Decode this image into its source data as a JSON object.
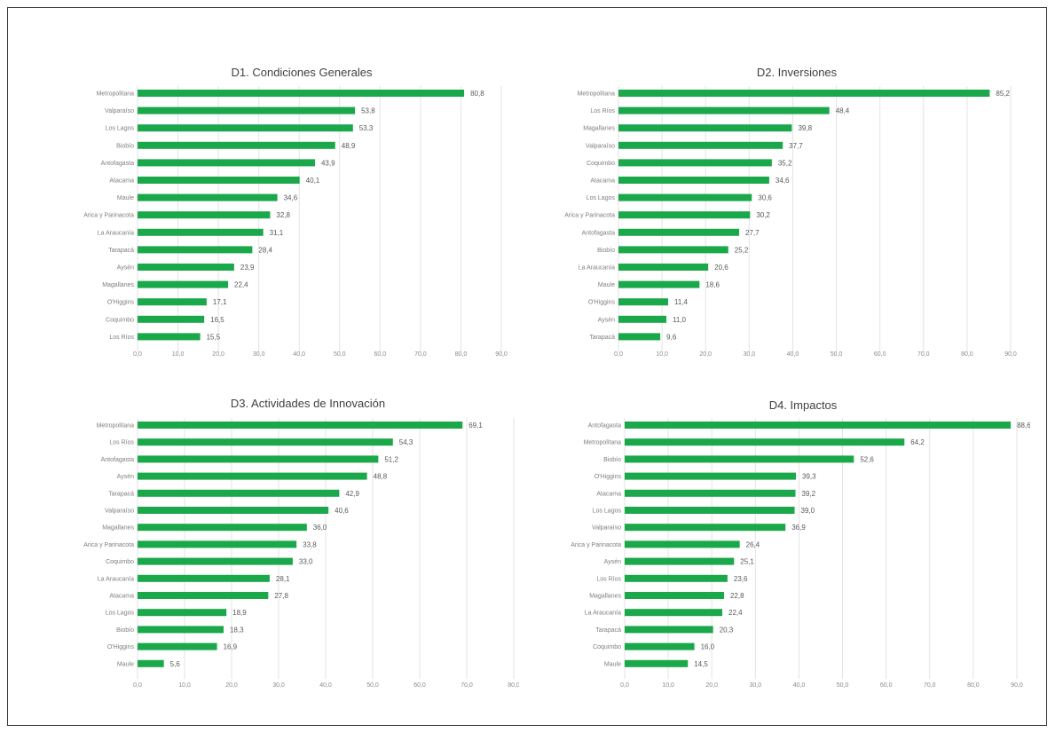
{
  "chart_data": [
    {
      "type": "bar",
      "orientation": "horizontal",
      "title": "D1. Condiciones Generales",
      "categories": [
        "Metropolitana",
        "Valparaíso",
        "Los Lagos",
        "Biobío",
        "Antofagasta",
        "Atacama",
        "Maule",
        "Arica y Parinacota",
        "La Araucanía",
        "Tarapacá",
        "Aysén",
        "Magallanes",
        "O'Higgins",
        "Coquimbo",
        "Los Ríos"
      ],
      "values": [
        80.8,
        53.8,
        53.3,
        48.9,
        43.9,
        40.1,
        34.6,
        32.8,
        31.1,
        28.4,
        23.9,
        22.4,
        17.1,
        16.5,
        15.5
      ],
      "value_labels": [
        "80,8",
        "53,8",
        "53,3",
        "48,9",
        "43,9",
        "40,1",
        "34,6",
        "32,8",
        "31,1",
        "28,4",
        "23,9",
        "22,4",
        "17,1",
        "16,5",
        "15,5"
      ],
      "tick_labels": [
        "0,0",
        "10,0",
        "20,0",
        "30,0",
        "40,0",
        "50,0",
        "60,0",
        "70,0",
        "80,0",
        "90,0"
      ],
      "xlim": [
        0,
        90
      ],
      "grid": true,
      "bar_color": "#1aa84a"
    },
    {
      "type": "bar",
      "orientation": "horizontal",
      "title": "D2. Inversiones",
      "categories": [
        "Metropolitana",
        "Los Ríos",
        "Magallanes",
        "Valparaíso",
        "Coquimbo",
        "Atacama",
        "Los Lagos",
        "Arica y Parinacota",
        "Antofagasta",
        "Biobío",
        "La Araucanía",
        "Maule",
        "O'Higgins",
        "Aysén",
        "Tarapacá"
      ],
      "values": [
        85.2,
        48.4,
        39.8,
        37.7,
        35.2,
        34.6,
        30.6,
        30.2,
        27.7,
        25.2,
        20.6,
        18.6,
        11.4,
        11.0,
        9.6
      ],
      "value_labels": [
        "85,2",
        "48,4",
        "39,8",
        "37,7",
        "35,2",
        "34,6",
        "30,6",
        "30,2",
        "27,7",
        "25,2",
        "20,6",
        "18,6",
        "11,4",
        "11,0",
        "9,6"
      ],
      "tick_labels": [
        "0,0",
        "10,0",
        "20,0",
        "30,0",
        "40,0",
        "50,0",
        "60,0",
        "70,0",
        "80,0",
        "90,0"
      ],
      "xlim": [
        0,
        90
      ],
      "grid": true,
      "bar_color": "#1aa84a"
    },
    {
      "type": "bar",
      "orientation": "horizontal",
      "title": "D3. Actividades de Innovación",
      "categories": [
        "Metropolitana",
        "Los Ríos",
        "Antofagasta",
        "Aysén",
        "Tarapacá",
        "Valparaíso",
        "Magallanes",
        "Arica y Parinacota",
        "Coquimbo",
        "La Araucanía",
        "Atacama",
        "Los Lagos",
        "Biobío",
        "O'Higgins",
        "Maule"
      ],
      "values": [
        69.1,
        54.3,
        51.2,
        48.8,
        42.9,
        40.6,
        36.0,
        33.8,
        33.0,
        28.1,
        27.8,
        18.9,
        18.3,
        16.9,
        5.6
      ],
      "value_labels": [
        "69,1",
        "54,3",
        "51,2",
        "48,8",
        "42,9",
        "40,6",
        "36,0",
        "33,8",
        "33,0",
        "28,1",
        "27,8",
        "18,9",
        "18,3",
        "16,9",
        "5,6"
      ],
      "tick_labels": [
        "0,0",
        "10,0",
        "20,0",
        "30,0",
        "40,0",
        "50,0",
        "60,0",
        "70,0",
        "80,0"
      ],
      "xlim": [
        0,
        80
      ],
      "grid": true,
      "bar_color": "#1aa84a"
    },
    {
      "type": "bar",
      "orientation": "horizontal",
      "title": "D4. Impactos",
      "categories": [
        "Antofagasta",
        "Metropolitana",
        "Biobío",
        "O'Higgins",
        "Atacama",
        "Los Lagos",
        "Valparaíso",
        "Arica y Parinacota",
        "Aysén",
        "Los Ríos",
        "Magallanes",
        "La Araucanía",
        "Tarapacá",
        "Coquimbo",
        "Maule"
      ],
      "values": [
        88.6,
        64.2,
        52.6,
        39.3,
        39.2,
        39.0,
        36.9,
        26.4,
        25.1,
        23.6,
        22.8,
        22.4,
        20.3,
        16.0,
        14.5
      ],
      "value_labels": [
        "88,6",
        "64,2",
        "52,6",
        "39,3",
        "39,2",
        "39,0",
        "36,9",
        "26,4",
        "25,1",
        "23,6",
        "22,8",
        "22,4",
        "20,3",
        "16,0",
        "14,5"
      ],
      "tick_labels": [
        "0,0",
        "10,0",
        "20,0",
        "30,0",
        "40,0",
        "50,0",
        "60,0",
        "70,0",
        "80,0",
        "90,0"
      ],
      "xlim": [
        0,
        90
      ],
      "grid": true,
      "bar_color": "#1aa84a"
    }
  ]
}
